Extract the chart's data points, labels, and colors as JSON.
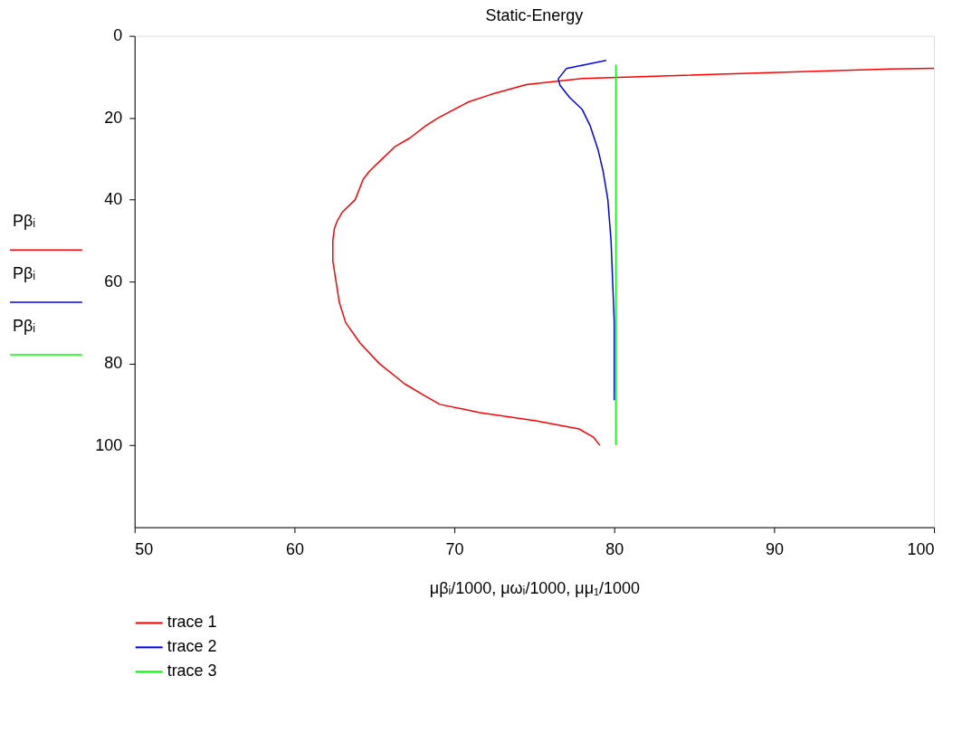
{
  "chart_data": {
    "type": "line",
    "title": "Static-Energy",
    "xlabel": "μβᵢ/1000, μωᵢ/1000, μμ₁/1000",
    "ylabel": "Pβᵢ",
    "xlim": [
      50,
      100
    ],
    "xticks": [
      50,
      60,
      70,
      80,
      90,
      100
    ],
    "ylim": [
      120,
      0
    ],
    "yticks": [
      0,
      20,
      40,
      60,
      80,
      100
    ],
    "grid": false,
    "legend": "bottom left",
    "marker": "none",
    "line_style": "solid",
    "series": [
      {
        "name": "trace 1",
        "color": "#ff0000",
        "x": [
          100,
          97.2,
          78.0,
          74.5,
          72.3,
          70.9,
          69.0,
          68.2,
          67.2,
          66.3,
          65.5,
          64.7,
          64.3,
          63.8,
          63.0,
          62.7,
          62.5,
          62.4,
          62.4,
          62.6,
          62.8,
          63.2,
          64.1,
          65.3,
          66.9,
          68.2,
          69.1,
          71.6,
          75.1,
          77.8,
          78.7,
          79.1
        ],
        "values": [
          7.9,
          8.1,
          10.4,
          11.9,
          14.3,
          16.1,
          20,
          22,
          25,
          27,
          30,
          33,
          35,
          40,
          43,
          45,
          47,
          50,
          55,
          60,
          65,
          70,
          75,
          80,
          85,
          88,
          90,
          92,
          94,
          96,
          98,
          100
        ]
      },
      {
        "name": "trace 2",
        "color": "#0000ff",
        "x": [
          79.5,
          77.0,
          76.5,
          76.6,
          77.2,
          78.0,
          78.5,
          79.0,
          79.3,
          79.6,
          79.8,
          79.9,
          80.0,
          80.0,
          80.0
        ],
        "values": [
          6,
          8,
          10.5,
          12,
          15,
          18,
          22,
          28,
          33,
          40,
          50,
          60,
          70,
          80,
          89
        ]
      },
      {
        "name": "trace 3",
        "color": "#00ff00",
        "x": [
          80.1,
          80.1
        ],
        "values": [
          7,
          100
        ]
      }
    ]
  }
}
